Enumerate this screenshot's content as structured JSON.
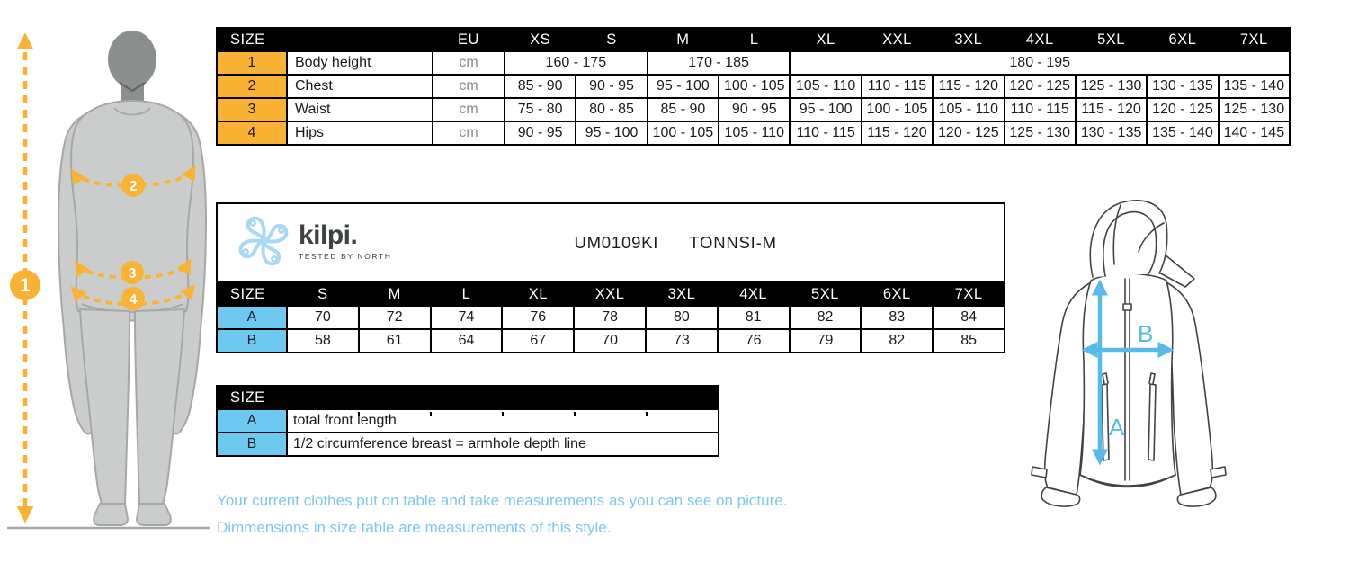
{
  "brand": {
    "logo_icon": "kilpi-knot-icon",
    "wordmark": "kilpi.",
    "tagline": "Tested by North"
  },
  "product": {
    "code": "UM0109KI",
    "name": "TONNSI-M"
  },
  "body_size_table": {
    "header": [
      {
        "t": "SIZE",
        "colspan": 2
      },
      "EU",
      "XS",
      "S",
      "M",
      "L",
      "XL",
      "XXL",
      "3XL",
      "4XL",
      "5XL",
      "6XL",
      "7XL"
    ],
    "rows": [
      [
        "1",
        "Body height",
        "cm",
        {
          "t": "160 - 175",
          "colspan": 2
        },
        {
          "t": "170 - 185",
          "colspan": 2
        },
        {
          "t": "180 - 195",
          "colspan": 7
        }
      ],
      [
        "2",
        "Chest",
        "cm",
        "85 - 90",
        "90 - 95",
        "95 - 100",
        "100 - 105",
        "105 - 110",
        "110 - 115",
        "115 - 120",
        "120 - 125",
        "125 - 130",
        "130 - 135",
        "135 - 140"
      ],
      [
        "3",
        "Waist",
        "cm",
        "75 - 80",
        "80 - 85",
        "85 - 90",
        "90 - 95",
        "95 - 100",
        "100 - 105",
        "105 - 110",
        "110 - 115",
        "115 - 120",
        "120 - 125",
        "125 - 130"
      ],
      [
        "4",
        "Hips",
        "cm",
        "90 - 95",
        "95 - 100",
        "100 - 105",
        "105 - 110",
        "110 - 115",
        "115 - 120",
        "120 - 125",
        "125 - 130",
        "130 - 135",
        "135 - 140",
        "140 - 145"
      ]
    ]
  },
  "garment_size_table": {
    "header": [
      "SIZE",
      "S",
      "M",
      "L",
      "XL",
      "XXL",
      "3XL",
      "4XL",
      "5XL",
      "6XL",
      "7XL"
    ],
    "rows": [
      [
        "A",
        "70",
        "72",
        "74",
        "76",
        "78",
        "80",
        "81",
        "82",
        "83",
        "84"
      ],
      [
        "B",
        "58",
        "61",
        "64",
        "67",
        "70",
        "73",
        "76",
        "79",
        "82",
        "85"
      ]
    ]
  },
  "legend_table": {
    "header": [
      {
        "t": "SIZE",
        "colspan": 2
      }
    ],
    "rows": [
      [
        "A",
        "total front length"
      ],
      [
        "B",
        "1/2 circumference breast = armhole depth line"
      ]
    ]
  },
  "notes": {
    "line1": "Your current clothes put on table and take measurements as you can see on picture.",
    "line2": "Dimmensions in size table are measurements of this style."
  },
  "figure_annotations": {
    "body_markers": [
      "1",
      "2",
      "3",
      "4"
    ],
    "jacket_markers": [
      "A",
      "B"
    ]
  },
  "colors": {
    "accent_orange": "#F9B233",
    "accent_blue": "#6EC9F0",
    "logo_blue": "#A9D9F2",
    "note_blue": "#7EC8EE",
    "arrow_blue": "#56BBEA",
    "header_black": "#000000",
    "silhouette_gray": "#CACDCC",
    "silhouette_head_gray": "#8B8F8D"
  }
}
